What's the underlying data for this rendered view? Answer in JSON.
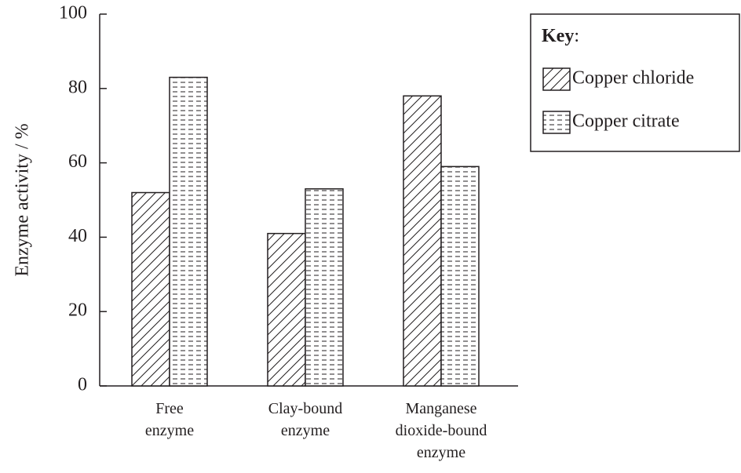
{
  "chart_data": {
    "type": "bar",
    "y_label": "Enzyme activity / %",
    "categories": [
      "Free enzyme",
      "Clay-bound enzyme",
      "Manganese dioxide-bound enzyme"
    ],
    "series": [
      {
        "name": "Copper chloride",
        "color": "#231f20",
        "pattern": "diagonal",
        "values": [
          52,
          41,
          78
        ]
      },
      {
        "name": "Copper citrate",
        "color": "#231f20",
        "pattern": "dashed",
        "values": [
          83,
          53,
          59
        ]
      }
    ],
    "ylim": [
      0,
      100
    ],
    "yticks": [
      0,
      20,
      40,
      60,
      80,
      100
    ],
    "legend_title": "Key:",
    "legend": "top-right",
    "grid": false
  }
}
